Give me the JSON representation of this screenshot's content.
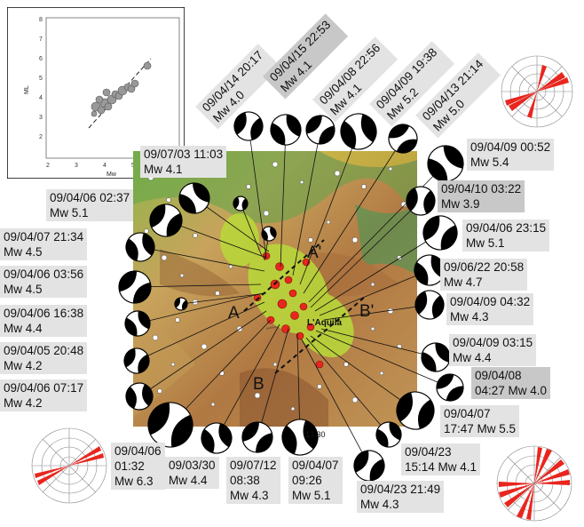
{
  "inset": {
    "xlabel": "Mw",
    "ylabel": "ML",
    "x_ticks": [
      "2",
      "3",
      "4",
      "5"
    ],
    "y_ticks": [
      "2",
      "3",
      "4",
      "5",
      "6",
      "7",
      "8"
    ]
  },
  "map": {
    "city": "L'Aquila",
    "coord_label": "13.30",
    "section_labels": {
      "a": "A",
      "a_prime": "A'",
      "b": "B",
      "b_prime": "B'"
    }
  },
  "events": [
    {
      "date": "09/04/14 20:17",
      "mag": "Mw 4.0"
    },
    {
      "date": "09/04/15 22:53",
      "mag": "Mw 4.1"
    },
    {
      "date": "09/04/08 22:56",
      "mag": "Mw 4.1"
    },
    {
      "date": "09/04/09 19:38",
      "mag": "Mw 5.2"
    },
    {
      "date": "09/04/13 21:14",
      "mag": "Mw 5.0"
    },
    {
      "date": "09/04/09 00:52",
      "mag": "Mw 5.4"
    },
    {
      "date": "09/04/10 03:22",
      "mag": "Mw 3.9"
    },
    {
      "date": "09/04/06 23:15",
      "mag": "Mw 5.1"
    },
    {
      "date": "09/06/22 20:58",
      "mag": "Mw 4.7"
    },
    {
      "date": "09/04/09 04:32",
      "mag": "Mw 4.3"
    },
    {
      "date": "09/04/09 03:15",
      "mag": "Mw 4.4"
    },
    {
      "date": "09/04/08",
      "mag": "04:27 Mw 4.0"
    },
    {
      "date": "09/04/07",
      "mag": "17:47 Mw 5.5"
    },
    {
      "date": "09/04/23",
      "mag": "15:14 Mw 4.1"
    },
    {
      "date": "09/04/23 21:49",
      "mag": "Mw 4.3"
    },
    {
      "date": "09/04/07",
      "time": "09:26",
      "mag": "Mw 5.1"
    },
    {
      "date": "09/07/12",
      "time": "08:38",
      "mag": "Mw 4.3"
    },
    {
      "date": "09/03/30",
      "mag": "Mw 4.4"
    },
    {
      "date": "09/04/06",
      "time": "01:32",
      "mag": "Mw 6.3"
    },
    {
      "date": "09/04/06 07:17",
      "mag": "Mw 4.2"
    },
    {
      "date": "09/04/05 20:48",
      "mag": "Mw 4.2"
    },
    {
      "date": "09/04/06 16:38",
      "mag": "Mw 4.4"
    },
    {
      "date": "09/04/06 03:56",
      "mag": "Mw 4.5"
    },
    {
      "date": "09/04/07 21:34",
      "mag": "Mw 4.5"
    },
    {
      "date": "09/04/06 02:37",
      "mag": "Mw 5.1"
    },
    {
      "date": "09/07/03 11:03",
      "mag": "Mw 4.1"
    }
  ],
  "colors": {
    "label_bg": "#e3e3e3",
    "label_bg_dark": "#c8c8c8",
    "epicenter": "#e8261e",
    "rose": "#e8261e",
    "aftershock": "#b9d63a"
  }
}
